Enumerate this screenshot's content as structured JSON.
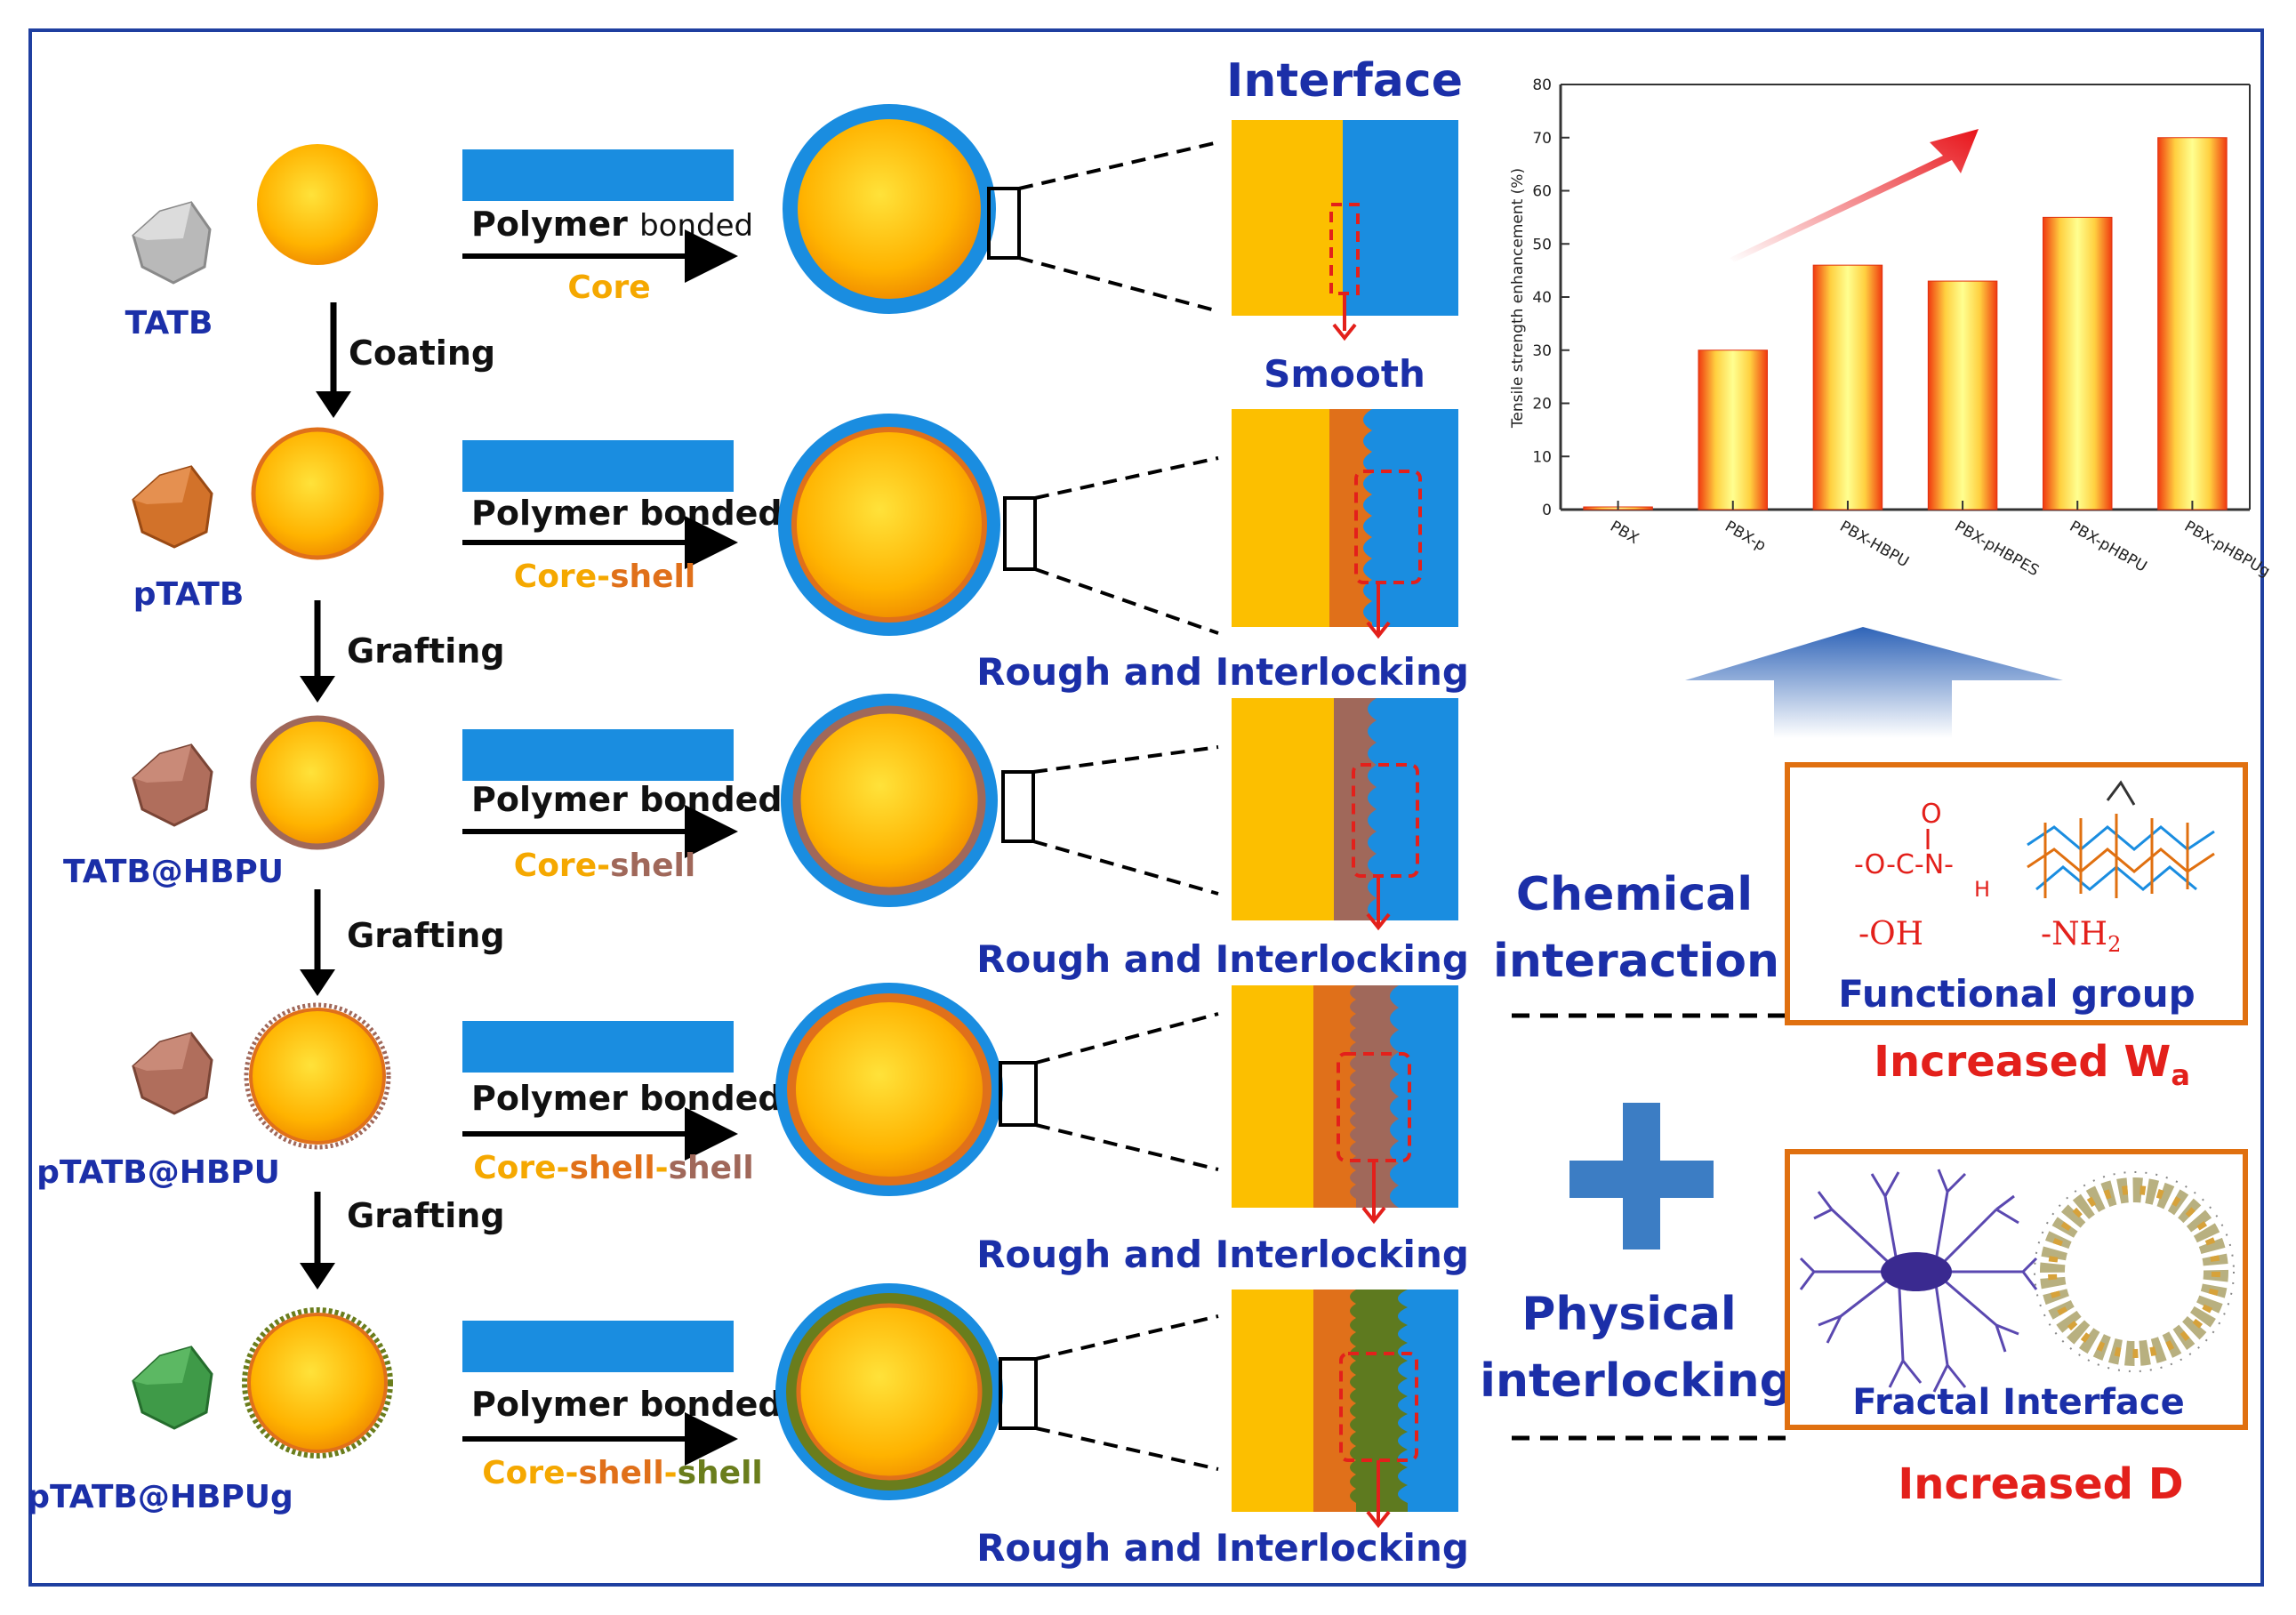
{
  "stages": [
    {
      "particle_label": "TATB",
      "poly_main": "Polymer ",
      "poly_sub": "bonded",
      "structure": [
        {
          "text": "Core",
          "color": "#f5a800"
        }
      ],
      "interface_label": "Smooth"
    },
    {
      "particle_label": "pTATB",
      "poly_main": "Polymer bonded",
      "poly_sub": "",
      "structure": [
        {
          "text": "Core",
          "color": "#f5a800"
        },
        {
          "text": "-",
          "color": "#f5a800"
        },
        {
          "text": "shell",
          "color": "#e0701a"
        }
      ],
      "interface_label": "Rough and Interlocking"
    },
    {
      "particle_label": "TATB@HBPU",
      "poly_main": "Polymer bonded",
      "poly_sub": "",
      "structure": [
        {
          "text": "Core",
          "color": "#f5a800"
        },
        {
          "text": "-",
          "color": "#f5a800"
        },
        {
          "text": "shell",
          "color": "#a0685a"
        }
      ],
      "interface_label": "Rough and Interlocking"
    },
    {
      "particle_label": "pTATB@HBPU",
      "poly_main": "Polymer bonded",
      "poly_sub": "",
      "structure": [
        {
          "text": "Core",
          "color": "#f5a800"
        },
        {
          "text": "-",
          "color": "#f5a800"
        },
        {
          "text": "shell",
          "color": "#e0701a"
        },
        {
          "text": "-",
          "color": "#f5a800"
        },
        {
          "text": "shell",
          "color": "#a0685a"
        }
      ],
      "interface_label": "Rough and Interlocking"
    },
    {
      "particle_label": "pTATB@HBPUg",
      "poly_main": "Polymer bonded",
      "poly_sub": "",
      "structure": [
        {
          "text": "Core",
          "color": "#f5a800"
        },
        {
          "text": "-",
          "color": "#f5a800"
        },
        {
          "text": "shell",
          "color": "#e0701a"
        },
        {
          "text": "-",
          "color": "#f5a800"
        },
        {
          "text": "shell",
          "color": "#6a7d1c"
        }
      ],
      "interface_label": "Rough and Interlocking"
    }
  ],
  "steps": [
    "Coating",
    "Grafting",
    "Grafting",
    "Grafting"
  ],
  "interface_title": "Interface",
  "right_panel": {
    "chemical_interaction": [
      "Chemical",
      "interaction"
    ],
    "physical_interlocking": [
      "Physical",
      "interlocking"
    ],
    "functional_group_title": "Functional group",
    "formula": "-O-C-N-",
    "formula_O": "O",
    "formula_H": "H",
    "oh": "-OH",
    "nh2": "-NH",
    "nh2_sub": "2",
    "increased_wa": "Increased W",
    "wa_sub": "a",
    "fractal_title": "Fractal Interface",
    "increased_d": "Increased D"
  },
  "colors": {
    "core": "#f5a800",
    "polymer": "#1a8de0",
    "shell_p": "#e0701a",
    "shell_hbpu": "#a0685a",
    "shell_g": "#6a7d1c",
    "title_blue": "#1b2fa8",
    "red": "#e3201b",
    "frame": "#1f3fa0"
  },
  "chart_data": {
    "type": "bar",
    "categories": [
      "PBX",
      "PBX-p",
      "PBX-HBPU",
      "PBX-pHBPES",
      "PBX-pHBPU",
      "PBX-pHBPUg"
    ],
    "values": [
      0.5,
      30,
      46,
      43,
      55,
      70
    ],
    "ylabel": "Tensile strength enhancement (%)",
    "xlabel": "",
    "title": "",
    "ylim": [
      0,
      80
    ],
    "yticks": [
      0,
      10,
      20,
      30,
      40,
      50,
      60,
      70,
      80
    ]
  }
}
